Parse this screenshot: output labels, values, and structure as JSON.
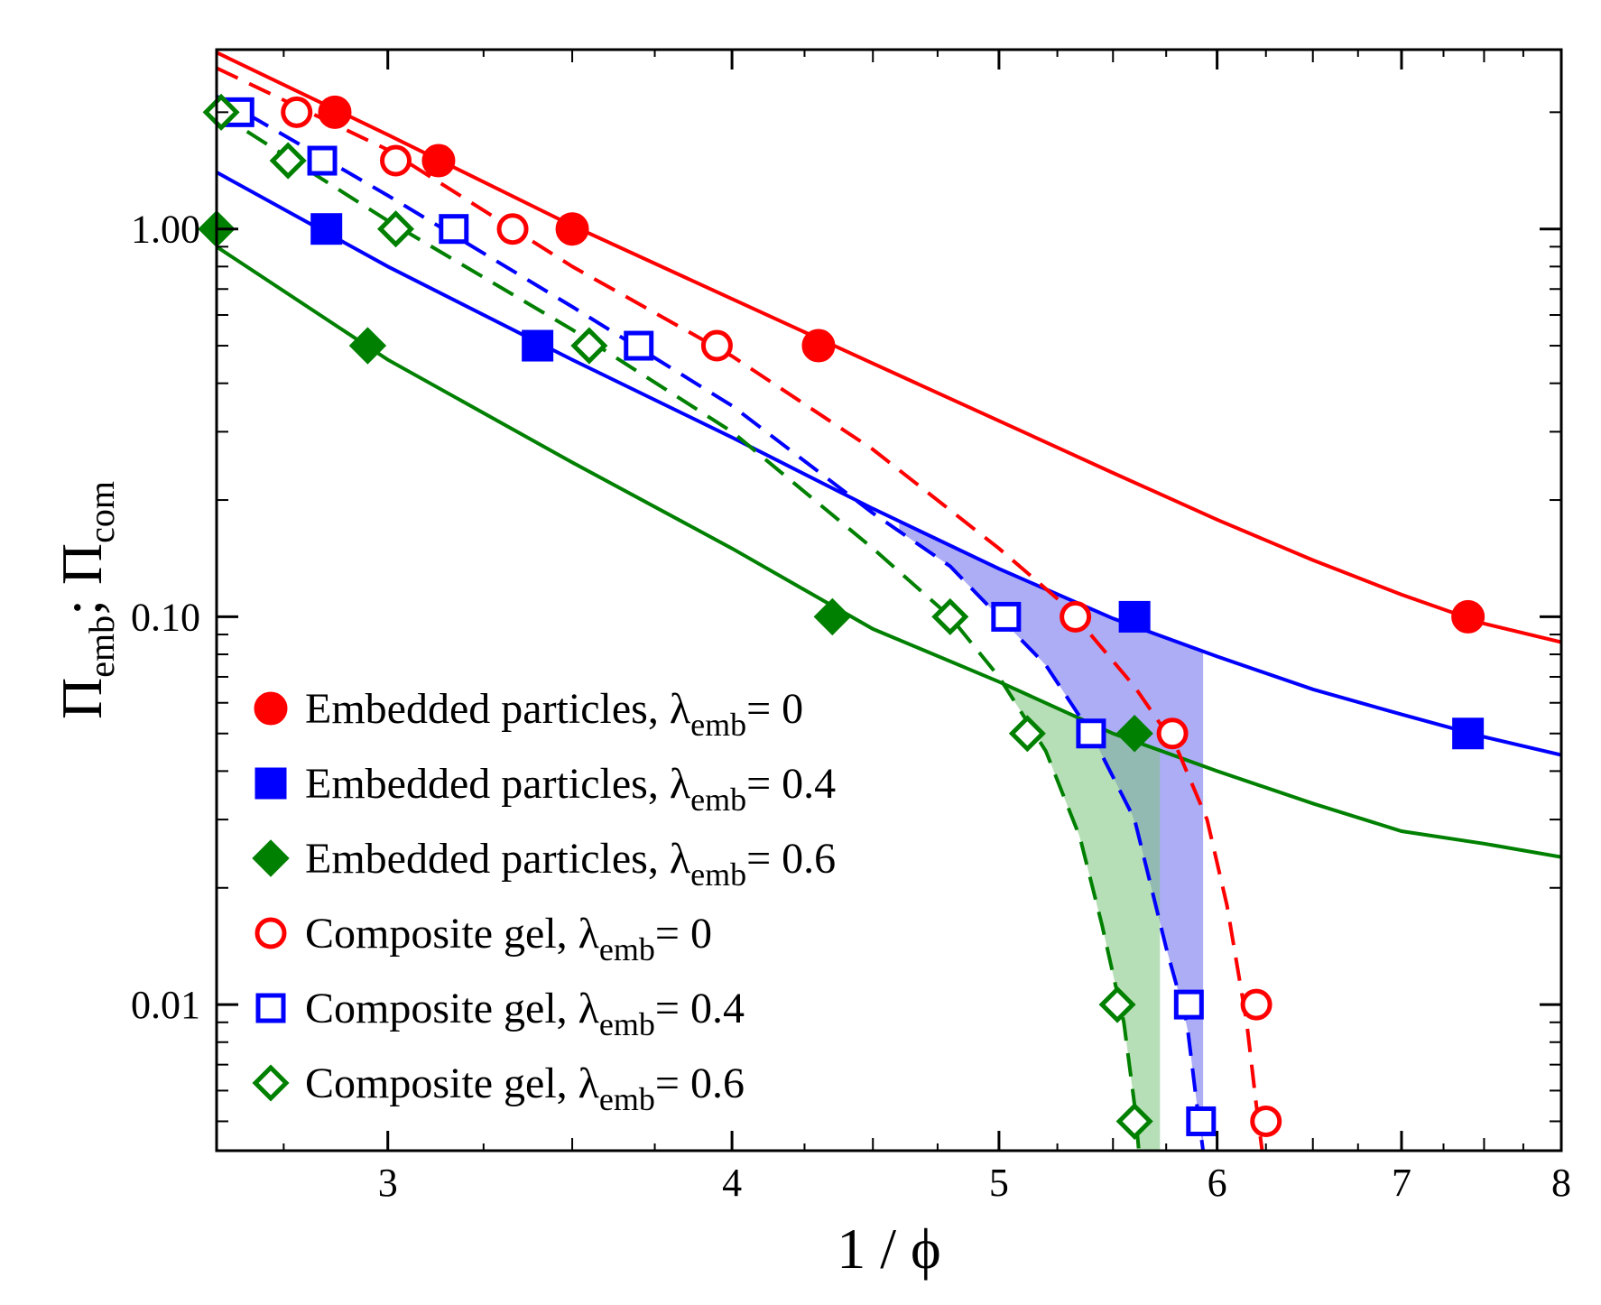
{
  "chart_data": {
    "type": "scatter",
    "title": "",
    "xlabel": "1 / ϕ",
    "ylabel": {
      "main": "Π",
      "sub1": "emb",
      "sep": "; Π",
      "sub2": "com"
    },
    "xscale": "log",
    "yscale": "log",
    "xlim": [
      2.6,
      8
    ],
    "ylim": [
      0.0042,
      2.9
    ],
    "x_ticks": [
      3,
      4,
      5,
      6,
      7,
      8
    ],
    "x_tick_labels": [
      "3",
      "4",
      "5",
      "6",
      "7",
      "8"
    ],
    "y_ticks": [
      0.01,
      0.1,
      1
    ],
    "y_tick_labels": [
      "0.01",
      "0.10",
      "1.00"
    ],
    "legend_position": "lower-left",
    "colors": {
      "red": "#ff0000",
      "blue": "#0000ff",
      "green": "#008000",
      "blue_fill": "#6a6aee",
      "green_fill": "#7cc47c"
    },
    "series": [
      {
        "name": "Embedded particles",
        "lambda_value": "0",
        "marker": "filled-circle",
        "color": "#ff0000",
        "x": [
          2.87,
          3.13,
          3.5,
          4.3,
          7.4
        ],
        "y": [
          2.0,
          1.5,
          1.0,
          0.5,
          0.1
        ]
      },
      {
        "name": "Embedded particles",
        "lambda_value": "0.4",
        "marker": "filled-square",
        "color": "#0000ff",
        "x": [
          2.85,
          3.4,
          5.6,
          7.4
        ],
        "y": [
          1.0,
          0.5,
          0.1,
          0.05
        ]
      },
      {
        "name": "Embedded particles",
        "lambda_value": "0.6",
        "marker": "filled-diamond",
        "color": "#008000",
        "x": [
          2.6,
          2.95,
          4.35,
          5.6
        ],
        "y": [
          1.0,
          0.5,
          0.1,
          0.05
        ]
      },
      {
        "name": "Composite gel",
        "lambda_value": "0",
        "marker": "open-circle",
        "color": "#ff0000",
        "x": [
          2.78,
          3.02,
          3.33,
          3.95,
          5.33,
          5.78,
          6.2,
          6.25
        ],
        "y": [
          2.0,
          1.5,
          1.0,
          0.5,
          0.1,
          0.05,
          0.01,
          0.005
        ]
      },
      {
        "name": "Composite gel",
        "lambda_value": "0.4",
        "marker": "open-square",
        "color": "#0000ff",
        "x": [
          2.65,
          2.84,
          3.17,
          3.7,
          5.03,
          5.4,
          5.86,
          5.92
        ],
        "y": [
          2.0,
          1.5,
          1.0,
          0.5,
          0.1,
          0.05,
          0.01,
          0.005
        ]
      },
      {
        "name": "Composite gel",
        "lambda_value": "0.6",
        "marker": "open-diamond",
        "color": "#008000",
        "x": [
          2.61,
          2.76,
          3.02,
          3.55,
          4.8,
          5.12,
          5.52,
          5.6
        ],
        "y": [
          2.0,
          1.5,
          1.0,
          0.5,
          0.1,
          0.05,
          0.01,
          0.005
        ]
      }
    ],
    "fit_curves": [
      {
        "series": "Embedded particles λ=0",
        "style": "solid",
        "color": "#ff0000",
        "x": [
          2.6,
          3.0,
          3.5,
          4.0,
          4.5,
          5.0,
          5.5,
          6.0,
          6.5,
          7.0,
          7.5,
          8.0
        ],
        "y": [
          2.85,
          1.75,
          1.02,
          0.66,
          0.45,
          0.32,
          0.235,
          0.178,
          0.14,
          0.114,
          0.096,
          0.086
        ]
      },
      {
        "series": "Embedded particles λ=0.4",
        "style": "solid",
        "color": "#0000ff",
        "x": [
          2.6,
          3.0,
          3.5,
          4.0,
          4.5,
          5.0,
          5.5,
          6.0,
          6.5,
          7.0,
          7.5,
          8.0
        ],
        "y": [
          1.4,
          0.8,
          0.46,
          0.29,
          0.19,
          0.133,
          0.099,
          0.079,
          0.065,
          0.056,
          0.049,
          0.044
        ]
      },
      {
        "series": "Embedded particles λ=0.6",
        "style": "solid",
        "color": "#008000",
        "x": [
          2.6,
          3.0,
          3.5,
          4.0,
          4.5,
          5.0,
          5.5,
          6.0,
          6.5,
          7.0,
          7.5,
          8.0
        ],
        "y": [
          0.9,
          0.46,
          0.25,
          0.15,
          0.093,
          0.068,
          0.05,
          0.04,
          0.033,
          0.028,
          0.026,
          0.024
        ]
      },
      {
        "series": "Composite gel λ=0",
        "style": "dashed",
        "color": "#ff0000",
        "x": [
          2.6,
          3.0,
          3.5,
          4.0,
          4.5,
          5.0,
          5.3,
          5.6,
          5.8,
          5.95,
          6.05,
          6.15,
          6.2,
          6.23
        ],
        "y": [
          2.6,
          1.6,
          0.8,
          0.47,
          0.27,
          0.15,
          0.105,
          0.066,
          0.046,
          0.03,
          0.018,
          0.009,
          0.0055,
          0.0042
        ]
      },
      {
        "series": "Composite gel λ=0.4",
        "style": "dashed",
        "color": "#0000ff",
        "x": [
          2.6,
          3.0,
          3.5,
          4.0,
          4.5,
          4.8,
          5.0,
          5.2,
          5.4,
          5.6,
          5.75,
          5.85,
          5.9,
          5.93
        ],
        "y": [
          2.2,
          1.22,
          0.63,
          0.35,
          0.185,
          0.135,
          0.1,
          0.075,
          0.05,
          0.03,
          0.014,
          0.009,
          0.0055,
          0.0042
        ]
      },
      {
        "series": "Composite gel λ=0.6",
        "style": "dashed",
        "color": "#008000",
        "x": [
          2.6,
          3.0,
          3.5,
          4.0,
          4.5,
          4.8,
          5.0,
          5.2,
          5.35,
          5.45,
          5.55,
          5.6,
          5.62
        ],
        "y": [
          2.0,
          1.05,
          0.55,
          0.3,
          0.15,
          0.1,
          0.07,
          0.045,
          0.027,
          0.016,
          0.009,
          0.0055,
          0.0042
        ]
      }
    ],
    "shaded_regions": [
      {
        "color": "#6a6aee",
        "between": "blue solid & blue dashed",
        "x_range": [
          4.6,
          5.93
        ]
      },
      {
        "color": "#7cc47c",
        "between": "green solid & green dashed",
        "x_range": [
          5.02,
          5.72
        ]
      }
    ],
    "legend": [
      {
        "text": "Embedded particles, λ",
        "sub": "emb",
        "value": "= 0",
        "marker": "filled-circle",
        "color": "#ff0000"
      },
      {
        "text": "Embedded particles, λ",
        "sub": "emb",
        "value": "= 0.4",
        "marker": "filled-square",
        "color": "#0000ff"
      },
      {
        "text": "Embedded particles, λ",
        "sub": "emb",
        "value": "= 0.6",
        "marker": "filled-diamond",
        "color": "#008000"
      },
      {
        "text": "Composite gel, λ",
        "sub": "emb",
        "value": "= 0",
        "marker": "open-circle",
        "color": "#ff0000"
      },
      {
        "text": "Composite gel, λ",
        "sub": "emb",
        "value": "= 0.4",
        "marker": "open-square",
        "color": "#0000ff"
      },
      {
        "text": "Composite gel, λ",
        "sub": "emb",
        "value": "= 0.6",
        "marker": "open-diamond",
        "color": "#008000"
      }
    ]
  }
}
